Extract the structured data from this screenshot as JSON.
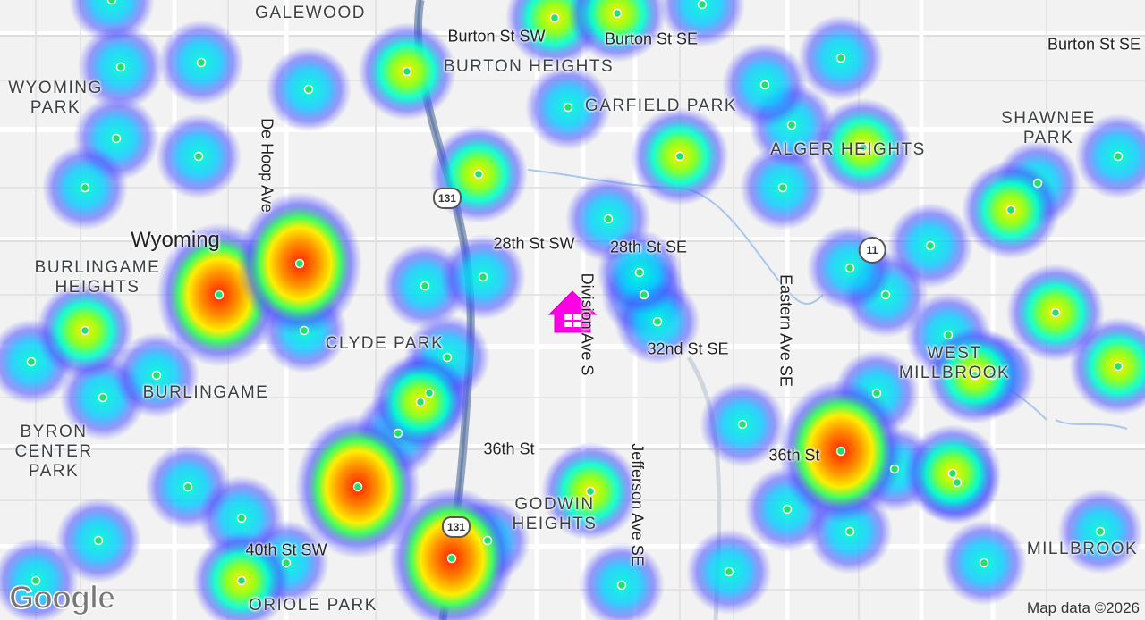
{
  "places": [
    "GALEWOOD",
    "BURTON HEIGHTS",
    "WYOMING PARK",
    "GARFIELD PARK",
    "SHAWNEE PARK",
    "ALGER HEIGHTS",
    "Wyoming",
    "BURLINGAME HEIGHTS",
    "CLYDE PARK",
    "WEST MILLBROOK",
    "BURLINGAME",
    "BYRON CENTER PARK",
    "GODWIN HEIGHTS",
    "MILLBROOK",
    "ORIOLE PARK"
  ],
  "streets": [
    "Burton St SW",
    "Burton St SE",
    "Burton St SE",
    "De Hoop Ave",
    "28th St SW",
    "28th St SE",
    "Division Ave S",
    "32nd St SE",
    "Eastern Ave SE",
    "36th St",
    "36th St",
    "Jefferson Ave SE",
    "40th St SW"
  ],
  "highway_shields": [
    "131",
    "131",
    "11"
  ],
  "attribution": "Map data ©2026",
  "logo": "Google"
}
